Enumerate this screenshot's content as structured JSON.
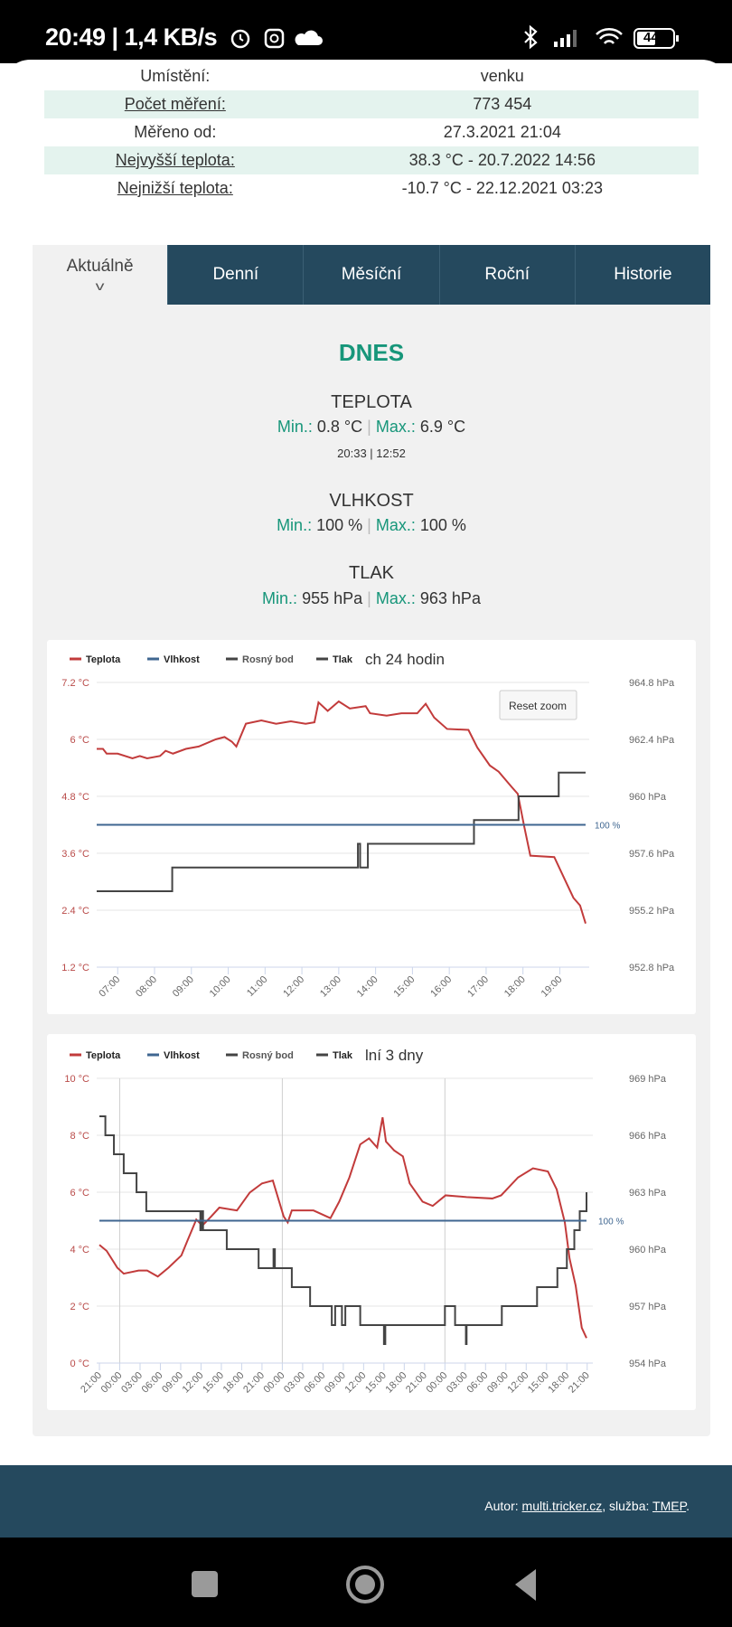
{
  "status_bar": {
    "time_speed": "20:49 | 1,4 KB/s",
    "battery": "44"
  },
  "info_table": [
    {
      "label": "Umístění:",
      "value": "venku",
      "link": false
    },
    {
      "label": "Počet měření:",
      "value": "773 454",
      "link": true
    },
    {
      "label": "Měřeno od:",
      "value": "27.3.2021 21:04",
      "link": false
    },
    {
      "label": "Nejvyšší teplota:",
      "value": "38.3 °C - 20.7.2022 14:56",
      "link": true
    },
    {
      "label": "Nejnižší teplota:",
      "value": "-10.7 °C - 22.12.2021 03:23",
      "link": true
    }
  ],
  "tabs": [
    {
      "label": "Aktuálně",
      "active": true
    },
    {
      "label": "Denní"
    },
    {
      "label": "Měsíční"
    },
    {
      "label": "Roční"
    },
    {
      "label": "Historie"
    }
  ],
  "today": {
    "title": "DNES",
    "min_label": "Min.:",
    "max_label": "Max.:",
    "separator": "|",
    "temperature": {
      "title": "TEPLOTA",
      "min": "0.8 °C",
      "max": "6.9 °C",
      "times": "20:33 | 12:52"
    },
    "humidity": {
      "title": "VLHKOST",
      "min": "100 %",
      "max": "100 %"
    },
    "pressure": {
      "title": "TLAK",
      "min": "955 hPa",
      "max": "963 hPa"
    }
  },
  "colors": {
    "temperature": "#c23b3b",
    "humidity": "#3f6690",
    "dewpoint": "#444444",
    "pressure": "#444444",
    "accent": "#17967a",
    "nav": "#25495e"
  },
  "chart_data": [
    {
      "type": "line",
      "title": "ch 24 hodin",
      "legend": [
        "Teplota",
        "Vlhkost",
        "Rosný bod",
        "Tlak"
      ],
      "legend_placement": "top-left",
      "reset_zoom_label": "Reset zoom",
      "xlim": [
        6.43,
        19.7
      ],
      "x_ticks": [
        {
          "t": 7,
          "label": "07:00"
        },
        {
          "t": 8,
          "label": "08:00"
        },
        {
          "t": 9,
          "label": "09:00"
        },
        {
          "t": 10,
          "label": "10:00"
        },
        {
          "t": 11,
          "label": "11:00"
        },
        {
          "t": 12,
          "label": "12:00"
        },
        {
          "t": 13,
          "label": "13:00"
        },
        {
          "t": 14,
          "label": "14:00"
        },
        {
          "t": 15,
          "label": "15:00"
        },
        {
          "t": 16,
          "label": "16:00"
        },
        {
          "t": 17,
          "label": "17:00"
        },
        {
          "t": 18,
          "label": "18:00"
        },
        {
          "t": 19,
          "label": "19:00"
        }
      ],
      "temp_axis": {
        "ylim": [
          1.2,
          7.2
        ],
        "ticks": [
          {
            "v": 7.2,
            "label": "7.2 °C"
          },
          {
            "v": 6,
            "label": "6 °C"
          },
          {
            "v": 4.8,
            "label": "4.8 °C"
          },
          {
            "v": 3.6,
            "label": "3.6 °C"
          },
          {
            "v": 2.4,
            "label": "2.4 °C"
          },
          {
            "v": 1.2,
            "label": "1.2 °C"
          }
        ]
      },
      "pressure_axis": {
        "ylim": [
          952.8,
          964.8
        ],
        "ticks": [
          {
            "v": 964.8,
            "label": "964.8 hPa"
          },
          {
            "v": 962.4,
            "label": "962.4 hPa"
          },
          {
            "v": 960,
            "label": "960 hPa"
          },
          {
            "v": 957.6,
            "label": "957.6 hPa"
          },
          {
            "v": 955.2,
            "label": "955.2 hPa"
          },
          {
            "v": 952.8,
            "label": "952.8 hPa"
          }
        ]
      },
      "humidity_axis": {
        "ylim": [
          0,
          200
        ],
        "label_value": 100,
        "label": "100 %"
      },
      "series": [
        {
          "name": "Teplota",
          "axis": "temp",
          "step": false,
          "points": [
            [
              6.43,
              5.8
            ],
            [
              6.6,
              5.8
            ],
            [
              6.7,
              5.7
            ],
            [
              7.0,
              5.7
            ],
            [
              7.4,
              5.6
            ],
            [
              7.6,
              5.65
            ],
            [
              7.8,
              5.6
            ],
            [
              8.15,
              5.65
            ],
            [
              8.3,
              5.76
            ],
            [
              8.5,
              5.7
            ],
            [
              8.85,
              5.8
            ],
            [
              9.2,
              5.85
            ],
            [
              9.66,
              6.0
            ],
            [
              9.9,
              6.05
            ],
            [
              10.1,
              5.95
            ],
            [
              10.22,
              5.85
            ],
            [
              10.48,
              6.33
            ],
            [
              10.9,
              6.4
            ],
            [
              11.3,
              6.33
            ],
            [
              11.7,
              6.38
            ],
            [
              12.1,
              6.33
            ],
            [
              12.34,
              6.36
            ],
            [
              12.45,
              6.78
            ],
            [
              12.7,
              6.6
            ],
            [
              13.0,
              6.8
            ],
            [
              13.3,
              6.65
            ],
            [
              13.73,
              6.7
            ],
            [
              13.85,
              6.55
            ],
            [
              14.3,
              6.5
            ],
            [
              14.7,
              6.55
            ],
            [
              15.13,
              6.55
            ],
            [
              15.36,
              6.75
            ],
            [
              15.59,
              6.46
            ],
            [
              15.94,
              6.22
            ],
            [
              16.52,
              6.2
            ],
            [
              16.76,
              5.83
            ],
            [
              17.1,
              5.45
            ],
            [
              17.34,
              5.32
            ],
            [
              17.69,
              5.0
            ],
            [
              17.86,
              4.85
            ],
            [
              18.03,
              4.18
            ],
            [
              18.2,
              3.55
            ],
            [
              18.85,
              3.52
            ],
            [
              19.14,
              3.04
            ],
            [
              19.37,
              2.66
            ],
            [
              19.55,
              2.5
            ],
            [
              19.7,
              2.12
            ]
          ]
        },
        {
          "name": "Tlak",
          "axis": "pressure",
          "step": true,
          "points": [
            [
              6.43,
              956
            ],
            [
              8.48,
              957
            ],
            [
              13.52,
              958
            ],
            [
              13.58,
              957
            ],
            [
              13.79,
              958
            ],
            [
              16.67,
              959
            ],
            [
              17.88,
              960
            ],
            [
              18.97,
              961
            ],
            [
              19.7,
              961
            ]
          ]
        },
        {
          "name": "Vlhkost",
          "axis": "humidity",
          "step": false,
          "points": [
            [
              6.43,
              100
            ],
            [
              19.7,
              100
            ]
          ]
        }
      ]
    },
    {
      "type": "line",
      "title": "lní 3 dny",
      "legend": [
        "Teplota",
        "Vlhkost",
        "Rosný bod",
        "Tlak"
      ],
      "legend_placement": "top-left",
      "xlim": [
        -0.4,
        72.3
      ],
      "day_lines": [
        3,
        27,
        51
      ],
      "x_ticks": [
        {
          "t": 0,
          "label": "21:00"
        },
        {
          "t": 3,
          "label": "00:00"
        },
        {
          "t": 6,
          "label": "03:00"
        },
        {
          "t": 9,
          "label": "06:00"
        },
        {
          "t": 12,
          "label": "09:00"
        },
        {
          "t": 15,
          "label": "12:00"
        },
        {
          "t": 18,
          "label": "15:00"
        },
        {
          "t": 21,
          "label": "18:00"
        },
        {
          "t": 24,
          "label": "21:00"
        },
        {
          "t": 27,
          "label": "00:00"
        },
        {
          "t": 30,
          "label": "03:00"
        },
        {
          "t": 33,
          "label": "06:00"
        },
        {
          "t": 36,
          "label": "09:00"
        },
        {
          "t": 39,
          "label": "12:00"
        },
        {
          "t": 42,
          "label": "15:00"
        },
        {
          "t": 45,
          "label": "18:00"
        },
        {
          "t": 48,
          "label": "21:00"
        },
        {
          "t": 51,
          "label": "00:00"
        },
        {
          "t": 54,
          "label": "03:00"
        },
        {
          "t": 57,
          "label": "06:00"
        },
        {
          "t": 60,
          "label": "09:00"
        },
        {
          "t": 63,
          "label": "12:00"
        },
        {
          "t": 66,
          "label": "15:00"
        },
        {
          "t": 69,
          "label": "18:00"
        },
        {
          "t": 72,
          "label": "21:00"
        }
      ],
      "temp_axis": {
        "ylim": [
          0,
          10
        ],
        "ticks": [
          {
            "v": 10,
            "label": "10 °C"
          },
          {
            "v": 8,
            "label": "8 °C"
          },
          {
            "v": 6,
            "label": "6 °C"
          },
          {
            "v": 4,
            "label": "4 °C"
          },
          {
            "v": 2,
            "label": "2 °C"
          },
          {
            "v": 0,
            "label": "0 °C"
          }
        ]
      },
      "pressure_axis": {
        "ylim": [
          954,
          969
        ],
        "ticks": [
          {
            "v": 969,
            "label": "969 hPa"
          },
          {
            "v": 966,
            "label": "966 hPa"
          },
          {
            "v": 963,
            "label": "963 hPa"
          },
          {
            "v": 960,
            "label": "960 hPa"
          },
          {
            "v": 957,
            "label": "957 hPa"
          },
          {
            "v": 954,
            "label": "954 hPa"
          }
        ]
      },
      "humidity_axis": {
        "ylim": [
          0,
          200
        ],
        "label_value": 100,
        "label": "100 %"
      },
      "series": [
        {
          "name": "Teplota",
          "axis": "temp",
          "step": false,
          "points": [
            [
              0,
              4.15
            ],
            [
              1.07,
              3.94
            ],
            [
              2.64,
              3.35
            ],
            [
              3.59,
              3.14
            ],
            [
              5.79,
              3.25
            ],
            [
              7.05,
              3.25
            ],
            [
              8.62,
              3.04
            ],
            [
              10.2,
              3.35
            ],
            [
              12.1,
              3.78
            ],
            [
              13.0,
              4.3
            ],
            [
              14.3,
              5.04
            ],
            [
              15.2,
              4.83
            ],
            [
              16.5,
              5.15
            ],
            [
              17.7,
              5.46
            ],
            [
              20.3,
              5.36
            ],
            [
              22.2,
              5.99
            ],
            [
              24.0,
              6.31
            ],
            [
              25.6,
              6.41
            ],
            [
              27.2,
              5.15
            ],
            [
              27.8,
              4.94
            ],
            [
              28.4,
              5.36
            ],
            [
              30.3,
              5.36
            ],
            [
              31.6,
              5.36
            ],
            [
              34.1,
              5.09
            ],
            [
              35.4,
              5.67
            ],
            [
              36.9,
              6.52
            ],
            [
              38.5,
              7.68
            ],
            [
              39.8,
              7.89
            ],
            [
              41.0,
              7.57
            ],
            [
              41.8,
              8.63
            ],
            [
              42.3,
              7.78
            ],
            [
              43.5,
              7.47
            ],
            [
              44.8,
              7.26
            ],
            [
              45.8,
              6.31
            ],
            [
              47.7,
              5.67
            ],
            [
              49.2,
              5.52
            ],
            [
              51.1,
              5.89
            ],
            [
              54.2,
              5.83
            ],
            [
              58.0,
              5.78
            ],
            [
              59.3,
              5.89
            ],
            [
              61.8,
              6.52
            ],
            [
              64.0,
              6.84
            ],
            [
              66.2,
              6.73
            ],
            [
              67.5,
              6.1
            ],
            [
              68.7,
              4.94
            ],
            [
              69.4,
              3.67
            ],
            [
              70.3,
              2.72
            ],
            [
              71.2,
              1.24
            ],
            [
              71.9,
              0.88
            ]
          ]
        },
        {
          "name": "Tlak",
          "axis": "pressure",
          "step": true,
          "points": [
            [
              0,
              967
            ],
            [
              0.88,
              966
            ],
            [
              2.14,
              965
            ],
            [
              3.59,
              964
            ],
            [
              5.48,
              963
            ],
            [
              6.92,
              962
            ],
            [
              14.9,
              961
            ],
            [
              15.1,
              962
            ],
            [
              15.3,
              961
            ],
            [
              18.8,
              960
            ],
            [
              23.5,
              959
            ],
            [
              25.7,
              960
            ],
            [
              25.9,
              959
            ],
            [
              28.4,
              958
            ],
            [
              31.1,
              957
            ],
            [
              34.3,
              956
            ],
            [
              34.8,
              957
            ],
            [
              35.8,
              956
            ],
            [
              36.3,
              957
            ],
            [
              38.5,
              956
            ],
            [
              42.0,
              955
            ],
            [
              42.2,
              956
            ],
            [
              51.0,
              957
            ],
            [
              52.5,
              956
            ],
            [
              54.1,
              955
            ],
            [
              54.2,
              956
            ],
            [
              59.4,
              957
            ],
            [
              64.6,
              958
            ],
            [
              67.6,
              959
            ],
            [
              69.0,
              960
            ],
            [
              70.1,
              961
            ],
            [
              70.9,
              962
            ],
            [
              71.9,
              963
            ]
          ]
        },
        {
          "name": "Vlhkost",
          "axis": "humidity",
          "step": false,
          "points": [
            [
              0,
              100
            ],
            [
              71.9,
              100
            ]
          ]
        }
      ]
    }
  ],
  "footer": {
    "author_label": "Autor: ",
    "author_link": "multi.tricker.cz",
    "service_label": ", služba: ",
    "service_link": "TMEP",
    "end": "."
  }
}
